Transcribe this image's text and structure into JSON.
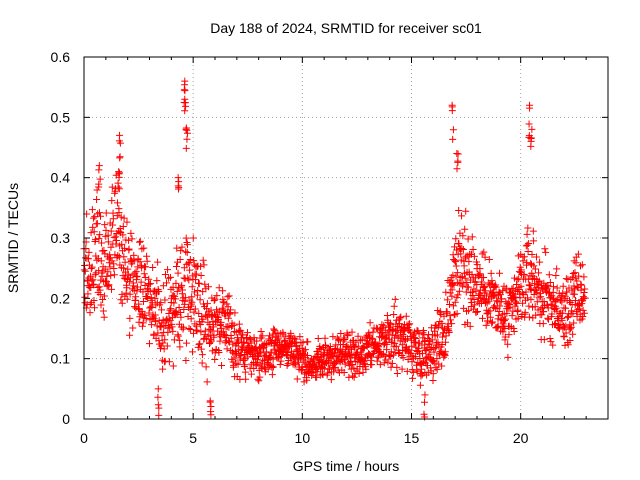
{
  "chart_data": {
    "type": "scatter",
    "title": "Day 188 of 2024, SRMTID for receiver sc01",
    "xlabel": "GPS time / hours",
    "ylabel": "SRMTID / TECUs",
    "xlim": [
      0,
      24
    ],
    "ylim": [
      0,
      0.6
    ],
    "xticks": [
      "0",
      "5",
      "10",
      "15",
      "20"
    ],
    "yticks": [
      "0",
      "0.1",
      "0.2",
      "0.3",
      "0.4",
      "0.5",
      "0.6"
    ],
    "grid": true,
    "marker": "+",
    "marker_color": "#ff0000",
    "series": [
      {
        "name": "SRMTID",
        "envelope_hours": [
          0,
          0.5,
          1,
          1.5,
          2,
          2.5,
          3,
          3.5,
          4,
          4.5,
          5,
          5.5,
          6,
          6.5,
          7,
          7.5,
          8,
          8.5,
          9,
          9.5,
          10,
          10.5,
          11,
          11.5,
          12,
          12.5,
          13,
          13.5,
          14,
          14.5,
          15,
          15.5,
          16,
          16.5,
          17,
          17.5,
          18,
          18.5,
          19,
          19.5,
          20,
          20.5,
          21,
          21.5,
          22,
          22.5,
          23
        ],
        "median_values": [
          0.24,
          0.28,
          0.25,
          0.31,
          0.24,
          0.22,
          0.2,
          0.17,
          0.18,
          0.23,
          0.21,
          0.17,
          0.16,
          0.15,
          0.12,
          0.11,
          0.1,
          0.11,
          0.12,
          0.12,
          0.1,
          0.09,
          0.1,
          0.1,
          0.11,
          0.1,
          0.11,
          0.12,
          0.13,
          0.14,
          0.12,
          0.11,
          0.12,
          0.14,
          0.25,
          0.25,
          0.22,
          0.21,
          0.18,
          0.16,
          0.22,
          0.24,
          0.2,
          0.19,
          0.17,
          0.2,
          0.21
        ],
        "spread": [
          0.07,
          0.08,
          0.07,
          0.09,
          0.07,
          0.06,
          0.06,
          0.07,
          0.07,
          0.09,
          0.07,
          0.07,
          0.06,
          0.05,
          0.04,
          0.03,
          0.03,
          0.03,
          0.03,
          0.03,
          0.03,
          0.02,
          0.03,
          0.03,
          0.03,
          0.03,
          0.03,
          0.03,
          0.04,
          0.05,
          0.04,
          0.04,
          0.04,
          0.05,
          0.08,
          0.07,
          0.06,
          0.05,
          0.06,
          0.05,
          0.06,
          0.07,
          0.06,
          0.05,
          0.05,
          0.06,
          0.05
        ],
        "peaks": [
          {
            "x": 0.7,
            "y": 0.42
          },
          {
            "x": 1.6,
            "y": 0.41
          },
          {
            "x": 1.65,
            "y": 0.47
          },
          {
            "x": 4.6,
            "y": 0.56
          },
          {
            "x": 4.65,
            "y": 0.53
          },
          {
            "x": 4.7,
            "y": 0.48
          },
          {
            "x": 4.3,
            "y": 0.4
          },
          {
            "x": 16.9,
            "y": 0.52
          },
          {
            "x": 17.1,
            "y": 0.44
          },
          {
            "x": 20.4,
            "y": 0.52
          },
          {
            "x": 20.5,
            "y": 0.48
          },
          {
            "x": 5.8,
            "y": 0.03
          },
          {
            "x": 3.4,
            "y": 0.05
          },
          {
            "x": 15.6,
            "y": 0.04
          }
        ]
      }
    ]
  }
}
